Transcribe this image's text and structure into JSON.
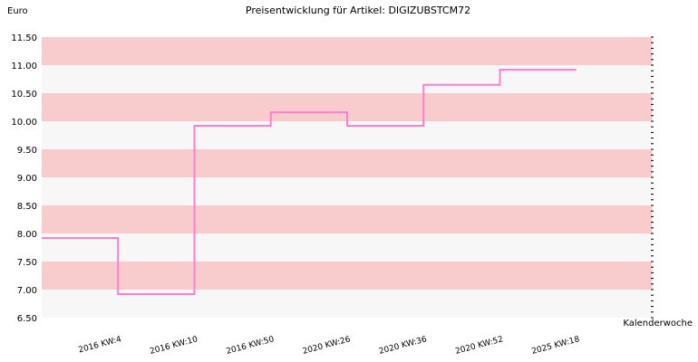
{
  "chart_data": {
    "type": "line",
    "step": true,
    "title": "Preisentwicklung für Artikel: DIGIZUBSTCM72",
    "ylabel": "Euro",
    "xlabel": "Kalenderwoche",
    "ylim": [
      6.5,
      11.5
    ],
    "ytick_step": 0.5,
    "yticks": [
      "11.50",
      "11.00",
      "10.50",
      "10.00",
      "9.50",
      "9.00",
      "8.50",
      "8.00",
      "7.50",
      "7.00",
      "6.50"
    ],
    "categories": [
      "2016 KW:4",
      "2016 KW:10",
      "2016 KW:50",
      "2020 KW:26",
      "2020 KW:36",
      "2020 KW:52",
      "2025 KW:18"
    ],
    "values": [
      7.92,
      6.92,
      9.92,
      10.16,
      9.92,
      10.65,
      10.92
    ],
    "line_color": "#ff7fcf",
    "band_colors": [
      "#f8cccc",
      "#f7f7f7"
    ]
  }
}
